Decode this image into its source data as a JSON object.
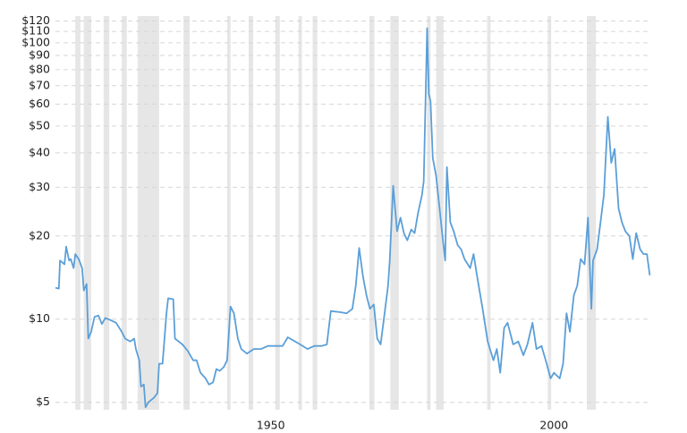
{
  "chart_data": {
    "type": "line",
    "x": [
      1912.0,
      1912.6,
      1912.8,
      1913.6,
      1913.9,
      1914.4,
      1914.7,
      1915.2,
      1915.5,
      1916.1,
      1916.7,
      1917.0,
      1917.5,
      1917.8,
      1918.3,
      1918.9,
      1919.6,
      1920.2,
      1920.8,
      1921.8,
      1922.7,
      1923.7,
      1924.3,
      1925.2,
      1925.9,
      1926.2,
      1926.8,
      1927.1,
      1927.6,
      1927.9,
      1928.4,
      1929.4,
      1930.0,
      1930.3,
      1930.9,
      1931.6,
      1931.9,
      1932.8,
      1933.1,
      1934.4,
      1935.3,
      1936.3,
      1936.9,
      1937.6,
      1938.5,
      1939.1,
      1939.8,
      1940.4,
      1941.0,
      1941.7,
      1942.3,
      1942.9,
      1943.5,
      1944.2,
      1944.8,
      1945.8,
      1947.0,
      1948.3,
      1949.5,
      1950.8,
      1952.1,
      1953.0,
      1954.3,
      1955.2,
      1956.5,
      1957.7,
      1959.0,
      1959.9,
      1960.6,
      1962.2,
      1963.4,
      1964.4,
      1965.0,
      1965.6,
      1966.3,
      1966.9,
      1967.5,
      1968.2,
      1968.8,
      1969.4,
      1970.0,
      1970.7,
      1971.0,
      1971.6,
      1972.3,
      1972.9,
      1973.5,
      1974.1,
      1974.8,
      1975.4,
      1976.0,
      1976.7,
      1977.0,
      1977.6,
      1977.9,
      1978.2,
      1978.6,
      1979.2,
      1979.8,
      1980.3,
      1980.8,
      1981.1,
      1981.7,
      1982.3,
      1983.0,
      1983.6,
      1984.2,
      1985.2,
      1985.8,
      1986.4,
      1987.4,
      1988.3,
      1989.3,
      1989.9,
      1990.5,
      1991.2,
      1991.8,
      1992.8,
      1993.7,
      1994.6,
      1995.3,
      1996.2,
      1996.9,
      1997.8,
      1998.7,
      1999.4,
      2000.0,
      2001.0,
      2001.6,
      2002.2,
      2002.8,
      2003.5,
      2004.1,
      2004.7,
      2005.4,
      2006.0,
      2006.6,
      2006.9,
      2007.6,
      2008.2,
      2008.8,
      2009.5,
      2010.1,
      2010.7,
      2011.4,
      2012.0,
      2012.6,
      2013.3,
      2013.9,
      2014.5,
      2015.2,
      2015.8,
      2016.4,
      2016.9
    ],
    "values": [
      13.0,
      12.9,
      16.3,
      15.8,
      18.3,
      16.3,
      16.5,
      15.3,
      17.2,
      16.5,
      15.3,
      12.7,
      13.4,
      8.5,
      9.0,
      10.2,
      10.3,
      9.6,
      10.1,
      9.9,
      9.7,
      9.0,
      8.5,
      8.3,
      8.5,
      7.8,
      7.1,
      5.7,
      5.8,
      4.8,
      5.0,
      5.2,
      5.4,
      6.9,
      6.9,
      10.5,
      11.9,
      11.8,
      8.5,
      8.1,
      7.7,
      7.1,
      7.1,
      6.4,
      6.1,
      5.8,
      5.9,
      6.6,
      6.5,
      6.7,
      7.1,
      11.1,
      10.5,
      8.5,
      7.8,
      7.5,
      7.8,
      7.8,
      8.0,
      8.0,
      8.0,
      8.6,
      8.3,
      8.1,
      7.8,
      8.0,
      8.0,
      8.1,
      10.7,
      10.6,
      10.5,
      10.9,
      13.2,
      18.1,
      14.2,
      12.2,
      10.9,
      11.3,
      8.5,
      8.1,
      10.1,
      13.2,
      16.3,
      30.4,
      20.8,
      23.3,
      20.5,
      19.3,
      21.1,
      20.5,
      24.2,
      28.2,
      31.6,
      113,
      65.3,
      61.4,
      38.3,
      32.9,
      25.2,
      20.0,
      16.3,
      35.5,
      22.4,
      20.8,
      18.5,
      17.9,
      16.5,
      15.3,
      17.2,
      14.4,
      10.9,
      8.3,
      7.1,
      7.8,
      6.4,
      9.3,
      9.7,
      8.1,
      8.3,
      7.4,
      8.1,
      9.7,
      7.8,
      8.0,
      6.9,
      6.1,
      6.4,
      6.1,
      6.9,
      10.5,
      9.0,
      12.2,
      13.2,
      16.5,
      15.8,
      23.3,
      10.9,
      16.3,
      17.9,
      22.4,
      28.2,
      54,
      36.8,
      41.3,
      25.2,
      22.4,
      20.8,
      20.0,
      16.5,
      20.5,
      17.9,
      17.2,
      17.2,
      14.4
    ],
    "color": "#5b9fd8",
    "shaded_ranges": [
      [
        1915.5,
        1916.4
      ],
      [
        1917.0,
        1918.3
      ],
      [
        1920.5,
        1921.5
      ],
      [
        1923.7,
        1924.6
      ],
      [
        1926.5,
        1930.3
      ],
      [
        1934.6,
        1935.7
      ],
      [
        1942.3,
        1942.9
      ],
      [
        1946.1,
        1946.9
      ],
      [
        1950.8,
        1951.6
      ],
      [
        1954.9,
        1955.5
      ],
      [
        1957.4,
        1958.2
      ],
      [
        1967.4,
        1968.3
      ],
      [
        1971.1,
        1972.6
      ],
      [
        1977.6,
        1978.2
      ],
      [
        1979.2,
        1980.5
      ],
      [
        1988.2,
        1988.8
      ],
      [
        1998.9,
        1999.5
      ],
      [
        2005.8,
        2007.4
      ]
    ],
    "shade_color": "#e6e6e6",
    "xlim": [
      1912,
      2017
    ],
    "xticks": [
      1950,
      2000
    ],
    "ylim": [
      4.7,
      125
    ],
    "log_y": true,
    "grid": true,
    "yticks": [
      {
        "value": 5,
        "label": "$5"
      },
      {
        "value": 10,
        "label": "$10"
      },
      {
        "value": 20,
        "label": "$20"
      },
      {
        "value": 30,
        "label": "$30"
      },
      {
        "value": 40,
        "label": "$40"
      },
      {
        "value": 50,
        "label": "$50"
      },
      {
        "value": 60,
        "label": "$60"
      },
      {
        "value": 70,
        "label": "$70"
      },
      {
        "value": 80,
        "label": "$80"
      },
      {
        "value": 90,
        "label": "$90"
      },
      {
        "value": 100,
        "label": "$100"
      },
      {
        "value": 110,
        "label": "$110"
      },
      {
        "value": 120,
        "label": "$120"
      }
    ]
  }
}
